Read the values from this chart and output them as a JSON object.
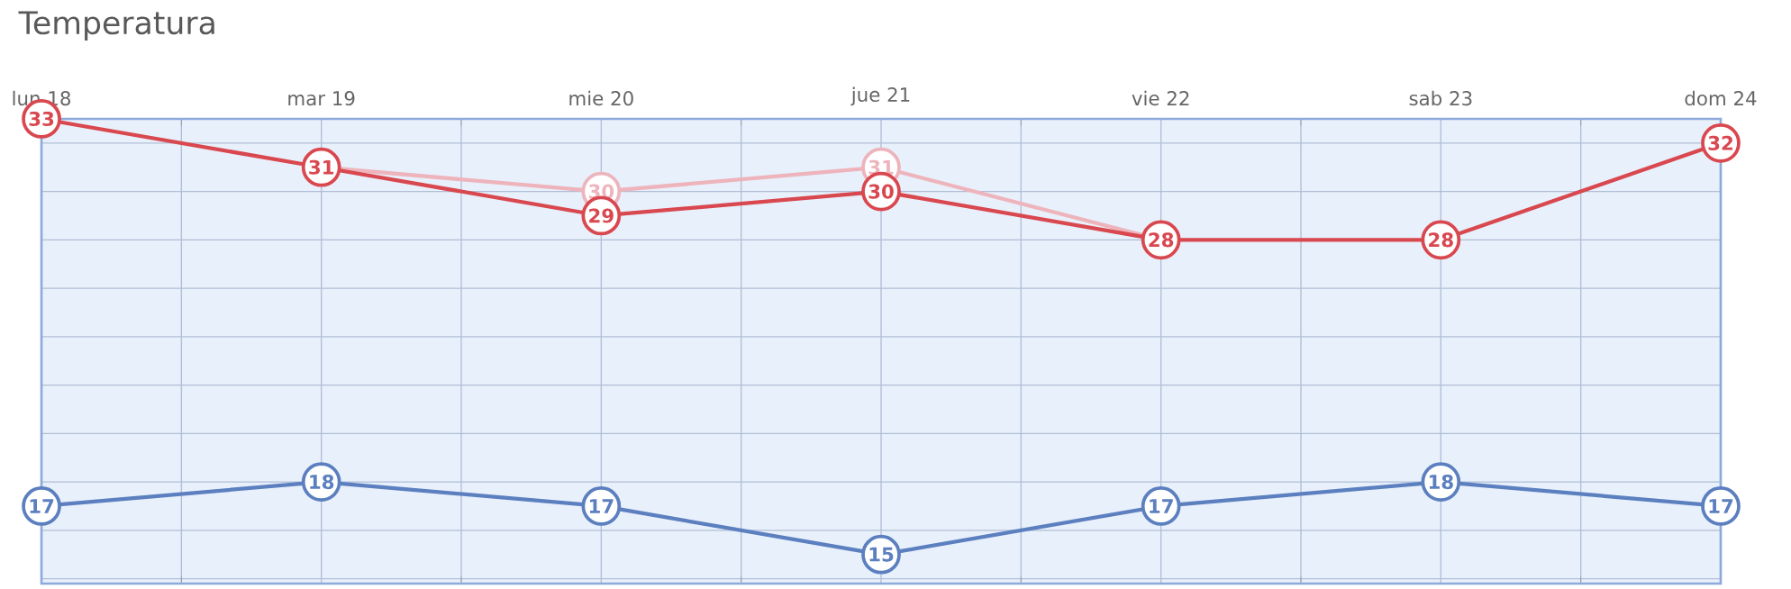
{
  "chart_data": {
    "type": "line",
    "title": "Temperatura",
    "categories": [
      "lun 18",
      "mar 19",
      "mie 20",
      "jue 21",
      "vie 22",
      "sab 23",
      "dom 24"
    ],
    "series": [
      {
        "color": "#eeb4bc",
        "values": [
          null,
          31,
          30,
          31,
          28,
          null,
          null
        ],
        "value_labels": [
          null,
          null,
          "30",
          "31",
          null,
          null,
          null
        ]
      },
      {
        "color": "#d9474f",
        "values": [
          33,
          31,
          29,
          30,
          28,
          28,
          32
        ]
      },
      {
        "color": "#5b7fbf",
        "values": [
          17,
          18,
          17,
          15,
          17,
          18,
          17
        ]
      }
    ],
    "ylim": [
      13.8,
      33
    ],
    "yticks": [
      {
        "value": 14,
        "label": null
      },
      {
        "value": 16,
        "label": null
      },
      {
        "value": 18,
        "label": null
      },
      {
        "value": 20,
        "label": null
      },
      {
        "value": 22,
        "label": null
      },
      {
        "value": 24,
        "label": null
      },
      {
        "value": 26,
        "label": null
      },
      {
        "value": 28,
        "label": null
      },
      {
        "value": 30,
        "label": null
      },
      {
        "value": 32,
        "label": null
      }
    ],
    "grid": true,
    "data_labels": true,
    "marker": "circle",
    "line_style": "solid",
    "tick_labels": "x"
  }
}
